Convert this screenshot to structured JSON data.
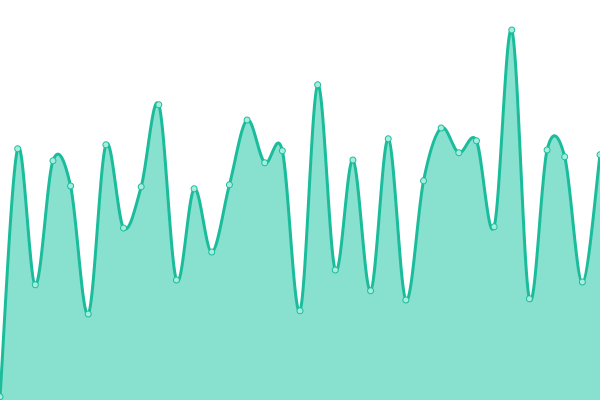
{
  "chart_data": {
    "type": "area",
    "curve": "smooth",
    "ylim": [
      0,
      100
    ],
    "grid": false,
    "axes_visible": false,
    "show_points": true,
    "colors": {
      "line": "#1abc9c",
      "fill": "#88e0ce",
      "point_fill": "#a8ecdd",
      "point_stroke": "#1abc9c"
    },
    "x": [
      0,
      1,
      2,
      3,
      4,
      5,
      6,
      7,
      8,
      9,
      10,
      11,
      12,
      13,
      14,
      15,
      16,
      17,
      18,
      19,
      20,
      21,
      22,
      23,
      24,
      25,
      26,
      27,
      28,
      29,
      30,
      31,
      32,
      33,
      34
    ],
    "values": [
      0.8,
      62.8,
      28.8,
      59.8,
      53.5,
      21.5,
      63.8,
      43,
      53.3,
      73.8,
      30,
      52.8,
      37,
      53.8,
      70,
      59.3,
      62.3,
      22.3,
      78.8,
      32.5,
      60,
      27.3,
      65.3,
      25,
      54.8,
      68,
      61.8,
      64.8,
      43.3,
      92.5,
      25.3,
      62.5,
      60.8,
      29.5,
      61.3
    ]
  }
}
